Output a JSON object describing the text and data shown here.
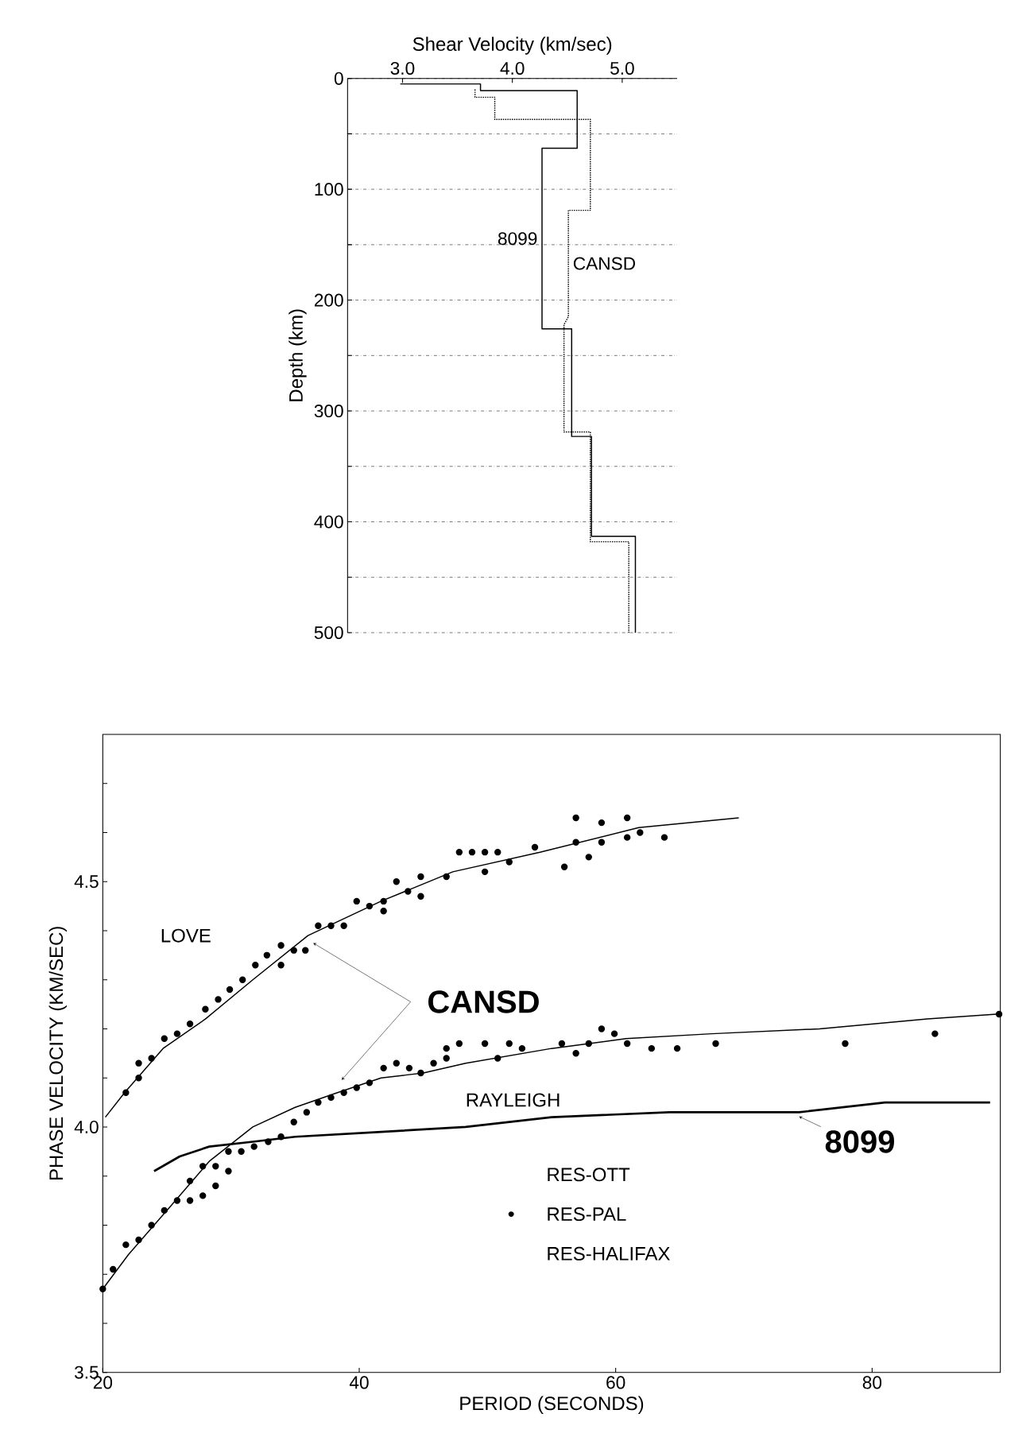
{
  "chart_data": [
    {
      "type": "line",
      "xlabel": "Shear Velocity (km/sec)",
      "ylabel": "Depth (km)",
      "xlim": [
        2.5,
        5.5
      ],
      "ylim": [
        500,
        0
      ],
      "xticks": [
        {
          "value": 3,
          "label": "3.0"
        },
        {
          "value": 4,
          "label": "4.0"
        },
        {
          "value": 5,
          "label": "5.0"
        }
      ],
      "yticks": [
        0,
        {
          "value": 50,
          "label": null
        },
        100,
        {
          "value": 150,
          "label": null
        },
        200,
        {
          "value": 250,
          "label": null
        },
        300,
        {
          "value": 350,
          "label": null
        },
        400,
        {
          "value": 450,
          "label": null
        },
        500
      ],
      "grid": "y",
      "series": [
        {
          "name": "8099",
          "color": "#000000",
          "line_style": "solid",
          "x": [
            2.98,
            3.71,
            3.71,
            4.59,
            4.59,
            4.27,
            4.27,
            4.54,
            4.54,
            4.72,
            4.72,
            5.12,
            5.12
          ],
          "values": [
            5,
            5,
            11,
            11,
            63,
            63,
            226,
            226,
            323,
            323,
            413,
            413,
            500
          ]
        },
        {
          "name": "CANSD",
          "color": "#000000",
          "line_style": "dotted",
          "x": [
            3.66,
            3.66,
            3.84,
            3.84,
            4.71,
            4.71,
            4.51,
            4.51,
            4.47,
            4.47,
            4.71,
            4.71,
            5.06,
            5.06
          ],
          "values": [
            10,
            17,
            17,
            37,
            37,
            119,
            119,
            215,
            222,
            319,
            319,
            418,
            418,
            500
          ]
        }
      ]
    },
    {
      "type": "line",
      "xlabel": "PERIOD      (SECONDS)",
      "ylabel": "PHASE VELOCITY (KM/SEC)",
      "xlim": [
        20,
        90
      ],
      "ylim": [
        3.5,
        4.8
      ],
      "xticks": [
        20,
        40,
        60,
        80
      ],
      "yticks": [
        {
          "value": 3.5,
          "label": "3.5"
        },
        {
          "value": 3.6,
          "label": null
        },
        {
          "value": 3.7,
          "label": null
        },
        {
          "value": 3.8,
          "label": null
        },
        {
          "value": 3.9,
          "label": null
        },
        {
          "value": 4.0,
          "label": "4.0"
        },
        {
          "value": 4.1,
          "label": null
        },
        {
          "value": 4.2,
          "label": null
        },
        {
          "value": 4.3,
          "label": null
        },
        {
          "value": 4.4,
          "label": null
        },
        {
          "value": 4.5,
          "label": "4.5"
        },
        {
          "value": 4.6,
          "label": null
        },
        {
          "value": 4.7,
          "label": null
        }
      ],
      "legend": "bottom right",
      "annotations": [
        "LOVE",
        "RAYLEIGH",
        "CANSD",
        "8099",
        "RES-OTT",
        "RES-HALIFAX"
      ],
      "series": [
        {
          "color": "#000000",
          "line_style": "solid",
          "marker": "none",
          "x": [
            20.2,
            21.7,
            24.7,
            28,
            31.7,
            36,
            41.7,
            47.3,
            54.1,
            61.8,
            69.6
          ],
          "values": [
            4.02,
            4.07,
            4.16,
            4.22,
            4.3,
            4.39,
            4.46,
            4.52,
            4.56,
            4.61,
            4.63
          ]
        },
        {
          "color": "#000000",
          "line_style": "solid",
          "marker": "none",
          "x": [
            20,
            22,
            25,
            28.3,
            31.7,
            35,
            38.3,
            41.7,
            45,
            48.3,
            55,
            60.8,
            67.5,
            75.9,
            84.3,
            89.7
          ],
          "values": [
            3.67,
            3.74,
            3.83,
            3.93,
            4.0,
            4.04,
            4.07,
            4.1,
            4.11,
            4.13,
            4.16,
            4.18,
            4.19,
            4.2,
            4.22,
            4.23
          ]
        },
        {
          "color": "#000000",
          "line_style": "solid",
          "marker": "none",
          "x": [
            24,
            26,
            28.3,
            31.7,
            35,
            41.7,
            48.3,
            55,
            64.2,
            74.3,
            81,
            89.2
          ],
          "values": [
            3.91,
            3.94,
            3.96,
            3.97,
            3.98,
            3.99,
            4.0,
            4.02,
            4.03,
            4.03,
            4.05,
            4.05
          ]
        },
        {
          "type": "scatter",
          "name": "RES-PAL",
          "color": "#000000",
          "marker": "circle",
          "x": [
            21.8,
            22.8,
            22.8,
            23.8,
            24.8,
            25.8,
            26.8,
            28,
            29,
            29.9,
            30.9,
            31.9,
            32.8,
            33.9,
            33.9,
            34.9,
            35.8,
            36.8,
            37.8,
            38.8,
            39.8,
            40.8,
            41.9,
            41.9,
            42.9,
            43.8,
            44.8,
            44.8,
            46.8,
            47.8,
            48.8,
            49.8,
            49.8,
            50.8,
            51.7,
            53.7,
            56,
            56.9,
            56.9,
            57.9,
            58.9,
            58.9,
            60.9,
            60.9,
            61.9,
            63.8,
            20,
            20.8,
            21.8,
            22.8,
            23.8,
            24.8,
            25.8,
            26.8,
            26.8,
            27.8,
            27.8,
            28.8,
            28.8,
            29.8,
            29.8,
            30.8,
            31.8,
            32.9,
            33.9,
            34.9,
            35.9,
            36.8,
            37.8,
            38.8,
            39.8,
            40.8,
            41.9,
            42.9,
            43.9,
            44.8,
            45.8,
            46.8,
            46.8,
            47.8,
            49.8,
            50.8,
            51.7,
            52.7,
            55.8,
            56.9,
            57.9,
            58.9,
            59.9,
            60.9,
            62.8,
            64.8,
            67.8,
            77.9,
            84.9,
            89.9
          ],
          "values": [
            4.07,
            4.1,
            4.13,
            4.14,
            4.18,
            4.19,
            4.21,
            4.24,
            4.26,
            4.28,
            4.3,
            4.33,
            4.35,
            4.33,
            4.37,
            4.36,
            4.36,
            4.41,
            4.41,
            4.41,
            4.46,
            4.45,
            4.46,
            4.44,
            4.5,
            4.48,
            4.51,
            4.47,
            4.51,
            4.56,
            4.56,
            4.56,
            4.52,
            4.56,
            4.54,
            4.57,
            4.53,
            4.63,
            4.58,
            4.55,
            4.62,
            4.58,
            4.63,
            4.59,
            4.6,
            4.59,
            3.67,
            3.71,
            3.76,
            3.77,
            3.8,
            3.83,
            3.85,
            3.85,
            3.89,
            3.86,
            3.92,
            3.88,
            3.92,
            3.91,
            3.95,
            3.95,
            3.96,
            3.97,
            3.98,
            4.01,
            4.03,
            4.05,
            4.06,
            4.07,
            4.08,
            4.09,
            4.12,
            4.13,
            4.12,
            4.11,
            4.13,
            4.14,
            4.16,
            4.17,
            4.17,
            4.14,
            4.17,
            4.16,
            4.17,
            4.15,
            4.17,
            4.2,
            4.19,
            4.17,
            4.16,
            4.16,
            4.17,
            4.17,
            4.19,
            4.23
          ]
        }
      ]
    }
  ]
}
